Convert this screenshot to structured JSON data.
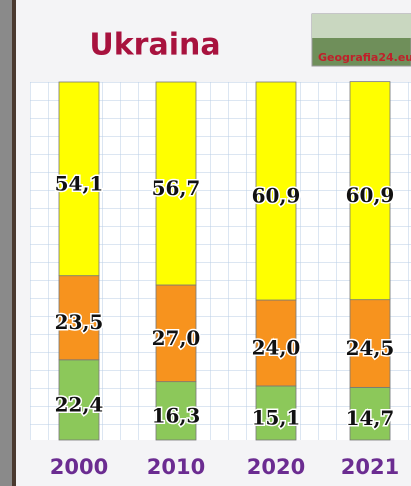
{
  "chart_data": {
    "type": "stacked_bar",
    "title": "Ukraina",
    "logo_text": "Geografia24.eu",
    "categories": [
      "2000",
      "2010",
      "2020",
      "2021"
    ],
    "ylim": [
      0,
      100
    ],
    "series": [
      {
        "color": "#8cc85a",
        "values": [
          22.4,
          16.3,
          15.1,
          14.7
        ],
        "value_labels": [
          "22,4",
          "16,3",
          "15,1",
          "14,7"
        ]
      },
      {
        "color": "#f7931e",
        "values": [
          23.5,
          27.0,
          24.0,
          24.5
        ],
        "value_labels": [
          "23,5",
          "27,0",
          "24,0",
          "24,5"
        ]
      },
      {
        "color": "#ffff00",
        "values": [
          54.1,
          56.7,
          60.9,
          60.9
        ],
        "value_labels": [
          "54,1",
          "56,7",
          "60,9",
          "60,9"
        ]
      }
    ]
  }
}
